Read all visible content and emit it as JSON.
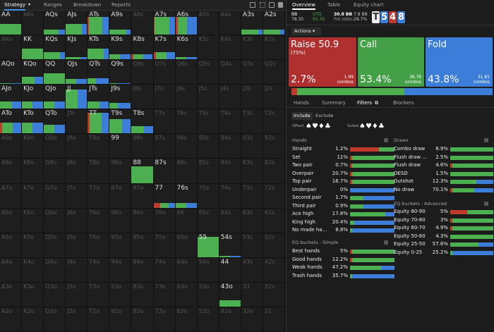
{
  "nav": {
    "strategy": "Strategy",
    "ranges": "Ranges",
    "breakdown": "Breakdown",
    "reports": "Reports"
  },
  "colors": {
    "raise": "#c0392b",
    "call": "#4caf50",
    "fold": "#3b7dd8"
  },
  "grid": [
    [
      "AA",
      "AKs",
      "AQs",
      "AJs",
      "ATs",
      "A9s",
      "A8s",
      "A7s",
      "A6s",
      "A5s",
      "A4s",
      "A3s",
      "A2s"
    ],
    [
      "AKo",
      "KK",
      "KQs",
      "KJs",
      "KTs",
      "K9s",
      "K8s",
      "K7s",
      "K6s",
      "K5s",
      "K4s",
      "K3s",
      "K2s"
    ],
    [
      "AQo",
      "KQo",
      "QQ",
      "QJs",
      "QTs",
      "Q9s",
      "Q8s",
      "Q7s",
      "Q6s",
      "Q5s",
      "Q4s",
      "Q3s",
      "Q2s"
    ],
    [
      "AJo",
      "KJo",
      "QJo",
      "JJ",
      "JTs",
      "J9s",
      "J8s",
      "J7s",
      "J6s",
      "J5s",
      "J4s",
      "J3s",
      "J2s"
    ],
    [
      "ATo",
      "KTo",
      "QTo",
      "JTo",
      "TT",
      "T9s",
      "T8s",
      "T7s",
      "T6s",
      "T5s",
      "T4s",
      "T3s",
      "T2s"
    ],
    [
      "A9o",
      "K9o",
      "Q9o",
      "J9o",
      "T9o",
      "99",
      "98s",
      "97s",
      "96s",
      "95s",
      "94s",
      "93s",
      "92s"
    ],
    [
      "A8o",
      "K8o",
      "Q8o",
      "J8o",
      "T8o",
      "98o",
      "88",
      "87s",
      "86s",
      "85s",
      "84s",
      "83s",
      "82s"
    ],
    [
      "A7o",
      "K7o",
      "Q7o",
      "J7o",
      "T7o",
      "97o",
      "87o",
      "77",
      "76s",
      "75s",
      "74s",
      "73s",
      "72s"
    ],
    [
      "A6o",
      "K6o",
      "Q6o",
      "J6o",
      "T6o",
      "96o",
      "86o",
      "76o",
      "66",
      "65s",
      "64s",
      "63s",
      "62s"
    ],
    [
      "A5o",
      "K5o",
      "Q5o",
      "J5o",
      "T5o",
      "95o",
      "85o",
      "75o",
      "65o",
      "55",
      "54s",
      "53s",
      "52s"
    ],
    [
      "A4o",
      "K4o",
      "Q4o",
      "J4o",
      "T4o",
      "94o",
      "84o",
      "74o",
      "64o",
      "54o",
      "44",
      "43s",
      "42s"
    ],
    [
      "A3o",
      "K3o",
      "Q3o",
      "J3o",
      "T3o",
      "93o",
      "83o",
      "73o",
      "63o",
      "53o",
      "43o",
      "33",
      "32s"
    ],
    [
      "A2o",
      "K2o",
      "Q2o",
      "J2o",
      "T2o",
      "92o",
      "82o",
      "72o",
      "62o",
      "52o",
      "42o",
      "32o",
      "22"
    ]
  ],
  "active_cells": {
    "AA": {
      "fill": 0.45,
      "raise": 0,
      "call": 1,
      "fold": 0
    },
    "AQs": {
      "fill": 0.2,
      "raise": 0,
      "call": 0.7,
      "fold": 0.3
    },
    "AJs": {
      "fill": 0.45,
      "raise": 0,
      "call": 0.75,
      "fold": 0.25
    },
    "ATs": {
      "fill": 0.75,
      "raise": 0.05,
      "call": 0.65,
      "fold": 0.3
    },
    "A9s": {
      "fill": 0.2,
      "raise": 0,
      "call": 0.8,
      "fold": 0.2
    },
    "A7s": {
      "fill": 0.75,
      "raise": 0.05,
      "call": 0.7,
      "fold": 0.25
    },
    "A6s": {
      "fill": 0.75,
      "raise": 0.1,
      "call": 0.45,
      "fold": 0.45
    },
    "A3s": {
      "fill": 0.2,
      "raise": 0,
      "call": 0.8,
      "fold": 0.2
    },
    "A2s": {
      "fill": 0.2,
      "raise": 0,
      "call": 0.8,
      "fold": 0.2
    },
    "KK": {
      "fill": 0.45,
      "raise": 0,
      "call": 1,
      "fold": 0
    },
    "KQs": {
      "fill": 0.3,
      "raise": 0,
      "call": 0.75,
      "fold": 0.25
    },
    "KJs": {
      "fill": 0.1,
      "raise": 0,
      "call": 0.7,
      "fold": 0.3
    },
    "KTs": {
      "fill": 0.45,
      "raise": 0,
      "call": 0.75,
      "fold": 0.25
    },
    "K9s": {
      "fill": 0.2,
      "raise": 0,
      "call": 0.5,
      "fold": 0.5
    },
    "K8s": {
      "fill": 0.2,
      "raise": 0.1,
      "call": 0.45,
      "fold": 0.45
    },
    "K7s": {
      "fill": 0.3,
      "raise": 0.1,
      "call": 0.5,
      "fold": 0.4
    },
    "K6s": {
      "fill": 0.1,
      "raise": 0,
      "call": 0.5,
      "fold": 0.5
    },
    "AQo": {
      "fill": 0.05,
      "raise": 0,
      "call": 0.5,
      "fold": 0.5
    },
    "KQo": {
      "fill": 0.3,
      "raise": 0,
      "call": 0.6,
      "fold": 0.4
    },
    "QQ": {
      "fill": 0.45,
      "raise": 0,
      "call": 1,
      "fold": 0
    },
    "QJs": {
      "fill": 0.2,
      "raise": 0,
      "call": 0.5,
      "fold": 0.5
    },
    "QTs": {
      "fill": 0.25,
      "raise": 0,
      "call": 0.4,
      "fold": 0.6
    },
    "Q9s": {
      "fill": 0.05,
      "raise": 0,
      "call": 0.4,
      "fold": 0.6
    },
    "AJo": {
      "fill": 0.3,
      "raise": 0,
      "call": 0.55,
      "fold": 0.45
    },
    "KJo": {
      "fill": 0.3,
      "raise": 0,
      "call": 0.5,
      "fold": 0.5
    },
    "QJo": {
      "fill": 0.3,
      "raise": 0,
      "call": 0.5,
      "fold": 0.5
    },
    "JJ": {
      "fill": 0.8,
      "raise": 0,
      "call": 0.55,
      "fold": 0.45
    },
    "JTs": {
      "fill": 0.3,
      "raise": 0,
      "call": 0.55,
      "fold": 0.45
    },
    "J9s": {
      "fill": 0.25,
      "raise": 0,
      "call": 0.4,
      "fold": 0.6
    },
    "ATo": {
      "fill": 0.45,
      "raise": 0.1,
      "call": 0.5,
      "fold": 0.4
    },
    "KTo": {
      "fill": 0.45,
      "raise": 0,
      "call": 0.5,
      "fold": 0.5
    },
    "QTo": {
      "fill": 0.35,
      "raise": 0,
      "call": 0.5,
      "fold": 0.5
    },
    "TT": {
      "fill": 0.85,
      "raise": 0.1,
      "call": 0.55,
      "fold": 0.35
    },
    "T9s": {
      "fill": 0.6,
      "raise": 0,
      "call": 0.6,
      "fold": 0.4
    },
    "T8s": {
      "fill": 0.3,
      "raise": 0,
      "call": 0.6,
      "fold": 0.4
    },
    "99": {
      "fill": 0,
      "raise": 0,
      "call": 0,
      "fold": 0
    },
    "88": {
      "fill": 0.7,
      "raise": 0,
      "call": 1,
      "fold": 0
    },
    "87s": {
      "fill": 0,
      "raise": 0,
      "call": 0,
      "fold": 0
    },
    "77": {
      "fill": 0.2,
      "raise": 0.3,
      "call": 0.4,
      "fold": 0.3
    },
    "76s": {
      "fill": 0.2,
      "raise": 0,
      "call": 0.5,
      "fold": 0.5
    },
    "55": {
      "fill": 0.85,
      "raise": 0,
      "call": 1,
      "fold": 0
    },
    "54s": {
      "fill": 0.05,
      "raise": 0,
      "call": 0.5,
      "fold": 0.5
    },
    "44": {
      "fill": 0,
      "raise": 0,
      "call": 0,
      "fold": 0
    },
    "43o": {
      "fill": 0.25,
      "raise": 0,
      "call": 1,
      "fold": 0
    }
  },
  "right": {
    "tabs": {
      "overview": "Overview",
      "table": "Table",
      "equity": "Equity chart"
    },
    "header": {
      "bb_label": "BB",
      "bb_val": "78.35",
      "utg_label": "UTG",
      "utg_val": "91.35",
      "pot_top": "30.8 BB",
      "pot_top2": "7.8 BB",
      "pot_label": "Pot odds:",
      "pot_odds": "29.7%"
    },
    "board": [
      {
        "rank": "T",
        "color": "#555"
      },
      {
        "rank": "5",
        "color": "#3b7dd8"
      },
      {
        "rank": "4",
        "color": "#c0392b"
      },
      {
        "rank": "8",
        "color": "#3b7dd8"
      }
    ],
    "actions_label": "Actions",
    "raise": {
      "name": "Raise 50.9",
      "sub": "(75%)",
      "pct": "2.7%",
      "combos": "1.99",
      "combos_label": "combos"
    },
    "call": {
      "name": "Call",
      "pct": "53.4%",
      "combos": "38.78",
      "combos_label": "combos"
    },
    "fold": {
      "name": "Fold",
      "pct": "43.8%",
      "combos": "31.81",
      "combos_label": "combos"
    },
    "subtabs": {
      "hands": "Hands",
      "summary": "Summary",
      "filters": "Filters",
      "blockers": "Blockers"
    },
    "include": "Include",
    "exclude": "Exclude",
    "offsuit": "Offsuit",
    "suited": "Suited",
    "hands_title": "Hands",
    "draws_title": "Draws",
    "eq_simple": "EQ buckets - Simple",
    "eq_adv": "EQ buckets - Advanced",
    "hands": [
      {
        "n": "Straight",
        "v": "1.2%",
        "r": 0.65,
        "c": 0.35,
        "f": 0
      },
      {
        "n": "Set",
        "v": "11%",
        "r": 0.05,
        "c": 0.95,
        "f": 0
      },
      {
        "n": "Two pair",
        "v": "0.7%",
        "r": 0.05,
        "c": 0.95,
        "f": 0
      },
      {
        "n": "Overpair",
        "v": "20.7%",
        "r": 0.05,
        "c": 0.95,
        "f": 0
      },
      {
        "n": "Top pair",
        "v": "16.7%",
        "r": 0.05,
        "c": 0.95,
        "f": 0
      },
      {
        "n": "Underpair",
        "v": "0%",
        "r": 0,
        "c": 0,
        "f": 1
      },
      {
        "n": "Second pair",
        "v": "1.7%",
        "r": 0,
        "c": 0.3,
        "f": 0.7
      },
      {
        "n": "Third pair",
        "v": "0.9%",
        "r": 0,
        "c": 0.3,
        "f": 0.7
      },
      {
        "n": "Ace high",
        "v": "17.8%",
        "r": 0,
        "c": 0.8,
        "f": 0.2
      },
      {
        "n": "King high",
        "v": "20.4%",
        "r": 0,
        "c": 0.1,
        "f": 0.9
      },
      {
        "n": "No made ha...",
        "v": "8.8%",
        "r": 0,
        "c": 0.05,
        "f": 0.95
      }
    ],
    "simple": [
      {
        "n": "Best hands",
        "v": "5%",
        "r": 0.05,
        "c": 0.95,
        "f": 0
      },
      {
        "n": "Good hands",
        "v": "12.2%",
        "r": 0.05,
        "c": 0.95,
        "f": 0
      },
      {
        "n": "Weak hands",
        "v": "47.2%",
        "r": 0,
        "c": 0.7,
        "f": 0.3
      },
      {
        "n": "Trash hands",
        "v": "35.7%",
        "r": 0,
        "c": 0.05,
        "f": 0.95
      }
    ],
    "draws": [
      {
        "n": "Combo draw",
        "v": "8.9%",
        "r": 0,
        "c": 1,
        "f": 0
      },
      {
        "n": "Flush draw ...",
        "v": "2.5%",
        "r": 0,
        "c": 1,
        "f": 0
      },
      {
        "n": "Flush draw",
        "v": "4.6%",
        "r": 0.05,
        "c": 0.95,
        "f": 0
      },
      {
        "n": "OESD",
        "v": "1.5%",
        "r": 0,
        "c": 1,
        "f": 0
      },
      {
        "n": "Gutshot",
        "v": "12.3%",
        "r": 0,
        "c": 0.6,
        "f": 0.4
      },
      {
        "n": "No draw",
        "v": "70.1%",
        "r": 0.05,
        "c": 0.5,
        "f": 0.45
      }
    ],
    "adv": [
      {
        "n": "Equity 80-90",
        "v": "5%",
        "r": 0.4,
        "c": 0.6,
        "f": 0
      },
      {
        "n": "Equity 70-80",
        "v": "3%",
        "r": 0.05,
        "c": 0.95,
        "f": 0
      },
      {
        "n": "Equity 60-70",
        "v": "4.9%",
        "r": 0.05,
        "c": 0.95,
        "f": 0
      },
      {
        "n": "Equity 50-60",
        "v": "4.3%",
        "r": 0,
        "c": 1,
        "f": 0
      },
      {
        "n": "Equity 25-50",
        "v": "57.6%",
        "r": 0,
        "c": 0.65,
        "f": 0.35
      },
      {
        "n": "Equity 0-25",
        "v": "25.2%",
        "r": 0,
        "c": 0.05,
        "f": 0.95
      }
    ],
    "totals": {
      "raise": 0.027,
      "call": 0.534,
      "fold": 0.438
    }
  }
}
